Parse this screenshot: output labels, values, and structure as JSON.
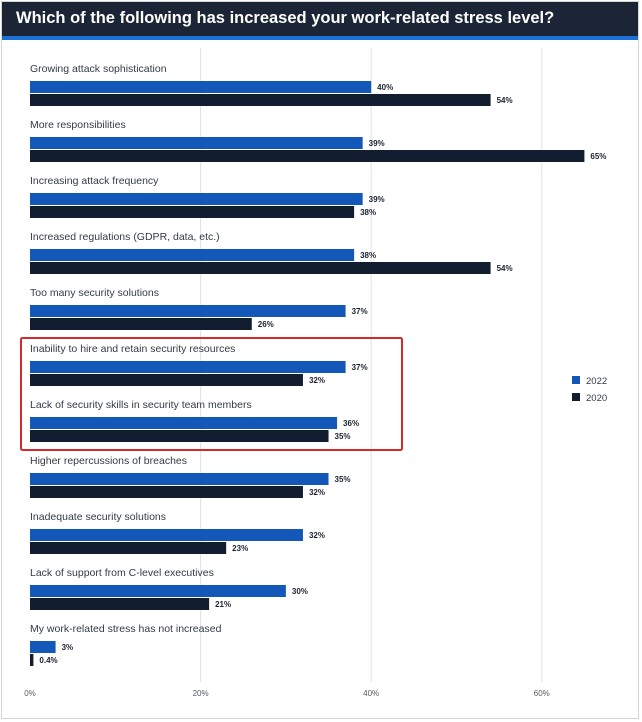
{
  "header": {
    "title": "Which of the following has increased your work-related stress level?"
  },
  "colors": {
    "header_bg": "#1b2535",
    "accent": "#1e6fd9",
    "series_2022": "#1357b8",
    "series_2020": "#131d30",
    "highlight_box": "#d42a2a",
    "grid": "#e2e2e2"
  },
  "chart_data": {
    "type": "bar",
    "orientation": "horizontal",
    "title": "Which of the following has increased your work-related stress level?",
    "categories": [
      "Growing attack sophistication",
      "More responsibilities",
      "Increasing attack frequency",
      "Increased regulations (GDPR, data, etc.)",
      "Too many security solutions",
      "Inability to hire and retain security resources",
      "Lack of security skills in security team members",
      "Higher repercussions of breaches",
      "Inadequate security solutions",
      "Lack of support from C-level executives",
      "My work-related stress has not increased"
    ],
    "series": [
      {
        "name": "2022",
        "values": [
          40,
          39,
          39,
          38,
          37,
          37,
          36,
          35,
          32,
          30,
          3
        ],
        "labels": [
          "40%",
          "39%",
          "39%",
          "38%",
          "37%",
          "37%",
          "36%",
          "35%",
          "32%",
          "30%",
          "3%"
        ]
      },
      {
        "name": "2020",
        "values": [
          54,
          65,
          38,
          54,
          26,
          32,
          35,
          32,
          23,
          21,
          0.4
        ],
        "labels": [
          "54%",
          "65%",
          "38%",
          "54%",
          "26%",
          "32%",
          "35%",
          "32%",
          "23%",
          "21%",
          "0.4%"
        ]
      }
    ],
    "xlim": [
      0,
      68
    ],
    "xticks": [
      0,
      20,
      40,
      60
    ],
    "xtick_labels": [
      "0%",
      "20%",
      "40%",
      "60%"
    ],
    "grid": true,
    "legend_position": "right",
    "highlighted_categories": [
      "Inability to hire and retain security resources",
      "Lack of security skills in security team members"
    ]
  }
}
